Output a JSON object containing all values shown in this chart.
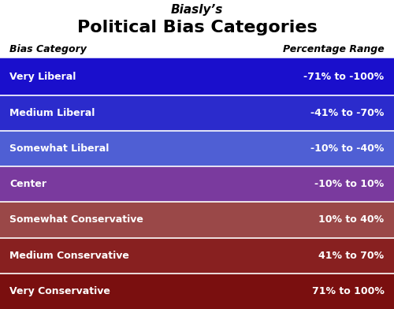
{
  "title_line1": "Biasly’s",
  "title_line2": "Political Bias Categories",
  "header_category": "Bias Category",
  "header_range": "Percentage Range",
  "rows": [
    {
      "label": "Very Liberal",
      "range": "-71% to -100%",
      "color": "#1a0fcc"
    },
    {
      "label": "Medium Liberal",
      "range": "-41% to -70%",
      "color": "#2b2bcc"
    },
    {
      "label": "Somewhat Liberal",
      "range": "-10% to -40%",
      "color": "#4f5fd4"
    },
    {
      "label": "Center",
      "range": "-10% to 10%",
      "color": "#7a3a9e"
    },
    {
      "label": "Somewhat Conservative",
      "range": "10% to 40%",
      "color": "#9a4848"
    },
    {
      "label": "Medium Conservative",
      "range": "41% to 70%",
      "color": "#882020"
    },
    {
      "label": "Very Conservative",
      "range": "71% to 100%",
      "color": "#7a0f0f"
    }
  ],
  "bg_color": "#ffffff",
  "text_color_dark": "#000000",
  "text_color_light": "#ffffff",
  "title1_fontsize": 11,
  "title2_fontsize": 16,
  "header_fontsize": 9,
  "row_fontsize": 9,
  "header_sep_color": "#1a0fcc"
}
